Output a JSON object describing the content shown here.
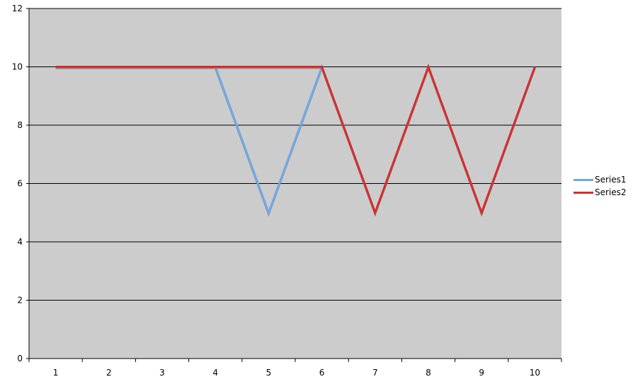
{
  "chart_data": {
    "type": "line",
    "title": "",
    "xlabel": "",
    "ylabel": "",
    "categories": [
      "1",
      "2",
      "3",
      "4",
      "5",
      "6",
      "7",
      "8",
      "9",
      "10"
    ],
    "ylim": [
      0,
      12
    ],
    "yticks": [
      "0",
      "2",
      "4",
      "6",
      "8",
      "10",
      "12"
    ],
    "grid": true,
    "plot_background": "#cccccc",
    "legend_position": "right",
    "series": [
      {
        "name": "Series1",
        "color": "#6fa8e8",
        "values": [
          10,
          10,
          10,
          10,
          5,
          10,
          5,
          10,
          5,
          10
        ]
      },
      {
        "name": "Series2",
        "color": "#d92b2b",
        "values": [
          10,
          10,
          10,
          10,
          10,
          10,
          5,
          10,
          5,
          10
        ]
      }
    ]
  }
}
